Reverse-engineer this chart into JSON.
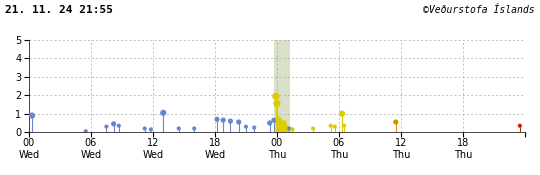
{
  "title_left": "21. 11. 24 21:55",
  "title_right": "©Veðurstofa Íslands",
  "xlim": [
    0,
    48
  ],
  "ylim": [
    0,
    5
  ],
  "yticks": [
    0,
    1,
    2,
    3,
    4,
    5
  ],
  "xticks": [
    0,
    6,
    12,
    18,
    24,
    30,
    36,
    42,
    48
  ],
  "xtick_line1": [
    "00",
    "06",
    "12",
    "18",
    "00",
    "06",
    "12",
    "18",
    ""
  ],
  "xtick_line2": [
    "Wed",
    "Wed",
    "Wed",
    "Wed",
    "Thu",
    "Thu",
    "Thu",
    "Thu",
    ""
  ],
  "background_color": "#ffffff",
  "grid_color": "#aaaaaa",
  "blue_color": "#6688cc",
  "yellow_color": "#ddcc00",
  "orange_color": "#dd8800",
  "red_color": "#cc2200",
  "earthquakes": [
    {
      "t": 0.3,
      "m": 0.9,
      "color": "blue"
    },
    {
      "t": 5.5,
      "m": 0.05,
      "color": "blue"
    },
    {
      "t": 7.5,
      "m": 0.3,
      "color": "blue"
    },
    {
      "t": 8.2,
      "m": 0.45,
      "color": "blue"
    },
    {
      "t": 8.7,
      "m": 0.35,
      "color": "blue"
    },
    {
      "t": 11.2,
      "m": 0.2,
      "color": "blue"
    },
    {
      "t": 11.8,
      "m": 0.15,
      "color": "blue"
    },
    {
      "t": 13.0,
      "m": 1.05,
      "color": "blue"
    },
    {
      "t": 14.5,
      "m": 0.2,
      "color": "blue"
    },
    {
      "t": 16.0,
      "m": 0.2,
      "color": "blue"
    },
    {
      "t": 18.2,
      "m": 0.7,
      "color": "blue"
    },
    {
      "t": 18.8,
      "m": 0.65,
      "color": "blue"
    },
    {
      "t": 19.5,
      "m": 0.6,
      "color": "blue"
    },
    {
      "t": 20.3,
      "m": 0.55,
      "color": "blue"
    },
    {
      "t": 21.0,
      "m": 0.3,
      "color": "blue"
    },
    {
      "t": 21.8,
      "m": 0.25,
      "color": "blue"
    },
    {
      "t": 23.3,
      "m": 0.5,
      "color": "blue"
    },
    {
      "t": 23.7,
      "m": 0.65,
      "color": "blue"
    },
    {
      "t": 23.9,
      "m": 1.95,
      "color": "yellow"
    },
    {
      "t": 24.0,
      "m": 1.55,
      "color": "yellow"
    },
    {
      "t": 24.1,
      "m": 0.7,
      "color": "yellow"
    },
    {
      "t": 24.15,
      "m": 0.55,
      "color": "yellow"
    },
    {
      "t": 24.2,
      "m": 0.7,
      "color": "yellow"
    },
    {
      "t": 24.25,
      "m": 0.6,
      "color": "yellow"
    },
    {
      "t": 24.3,
      "m": 0.55,
      "color": "yellow"
    },
    {
      "t": 24.35,
      "m": 0.45,
      "color": "yellow"
    },
    {
      "t": 24.4,
      "m": 0.35,
      "color": "yellow"
    },
    {
      "t": 24.5,
      "m": 0.5,
      "color": "yellow"
    },
    {
      "t": 24.6,
      "m": 0.4,
      "color": "yellow"
    },
    {
      "t": 24.7,
      "m": 0.5,
      "color": "yellow"
    },
    {
      "t": 24.75,
      "m": 0.35,
      "color": "yellow"
    },
    {
      "t": 24.8,
      "m": 0.3,
      "color": "yellow"
    },
    {
      "t": 24.85,
      "m": 0.3,
      "color": "yellow"
    },
    {
      "t": 24.9,
      "m": 0.25,
      "color": "yellow"
    },
    {
      "t": 25.0,
      "m": 0.25,
      "color": "yellow"
    },
    {
      "t": 25.05,
      "m": 0.2,
      "color": "yellow"
    },
    {
      "t": 25.1,
      "m": 0.15,
      "color": "yellow"
    },
    {
      "t": 25.2,
      "m": 0.2,
      "color": "blue"
    },
    {
      "t": 25.5,
      "m": 0.15,
      "color": "yellow"
    },
    {
      "t": 27.5,
      "m": 0.2,
      "color": "yellow"
    },
    {
      "t": 29.2,
      "m": 0.35,
      "color": "yellow"
    },
    {
      "t": 29.6,
      "m": 0.3,
      "color": "yellow"
    },
    {
      "t": 30.3,
      "m": 1.0,
      "color": "yellow"
    },
    {
      "t": 30.5,
      "m": 0.35,
      "color": "yellow"
    },
    {
      "t": 35.5,
      "m": 0.55,
      "color": "orange"
    },
    {
      "t": 47.5,
      "m": 0.35,
      "color": "red"
    }
  ],
  "shaded_region": [
    23.7,
    25.3
  ],
  "shaded_color": "#aabb88"
}
